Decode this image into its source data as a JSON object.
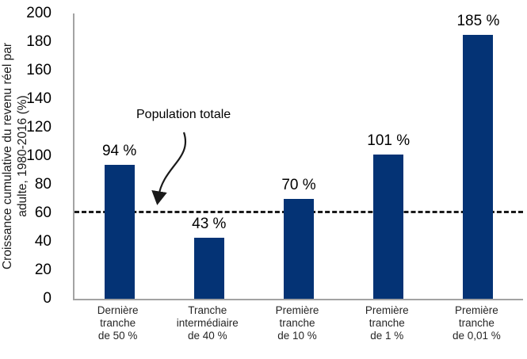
{
  "chart_data": {
    "type": "bar",
    "title": "",
    "ylabel": "Croissance cumulative du revenu réel par adulte, 1980-2016 (%)",
    "ylabel_lines": [
      "Croissance cumulative du revenu réel par",
      "adulte, 1980-2016 (%)"
    ],
    "xlabel": "",
    "ylim": [
      0,
      200
    ],
    "yticks": [
      0,
      20,
      40,
      60,
      80,
      100,
      120,
      140,
      160,
      180,
      200
    ],
    "grid": false,
    "legend": "none",
    "categories": [
      "Dernière tranche de 50 %",
      "Tranche intermédiaire de 40 %",
      "Première tranche de 10 %",
      "Première tranche de 1 %",
      "Première tranche de 0,01 %"
    ],
    "category_lines": [
      [
        "Dernière",
        "tranche",
        "de 50 %"
      ],
      [
        "Tranche",
        "intermédiaire",
        "de 40 %"
      ],
      [
        "Première",
        "tranche",
        "de 10 %"
      ],
      [
        "Première",
        "tranche",
        "de 1 %"
      ],
      [
        "Première",
        "tranche",
        "de 0,01 %"
      ]
    ],
    "values": [
      94,
      43,
      70,
      101,
      185
    ],
    "value_labels": [
      "94 %",
      "43 %",
      "70 %",
      "101 %",
      "185 %"
    ],
    "reference_line": {
      "value": 60,
      "label": "Population totale"
    },
    "colors": {
      "bar": "#043375",
      "axis": "#a3a3a3",
      "reference_line": "#1a1a1a",
      "text": "#000000"
    }
  }
}
